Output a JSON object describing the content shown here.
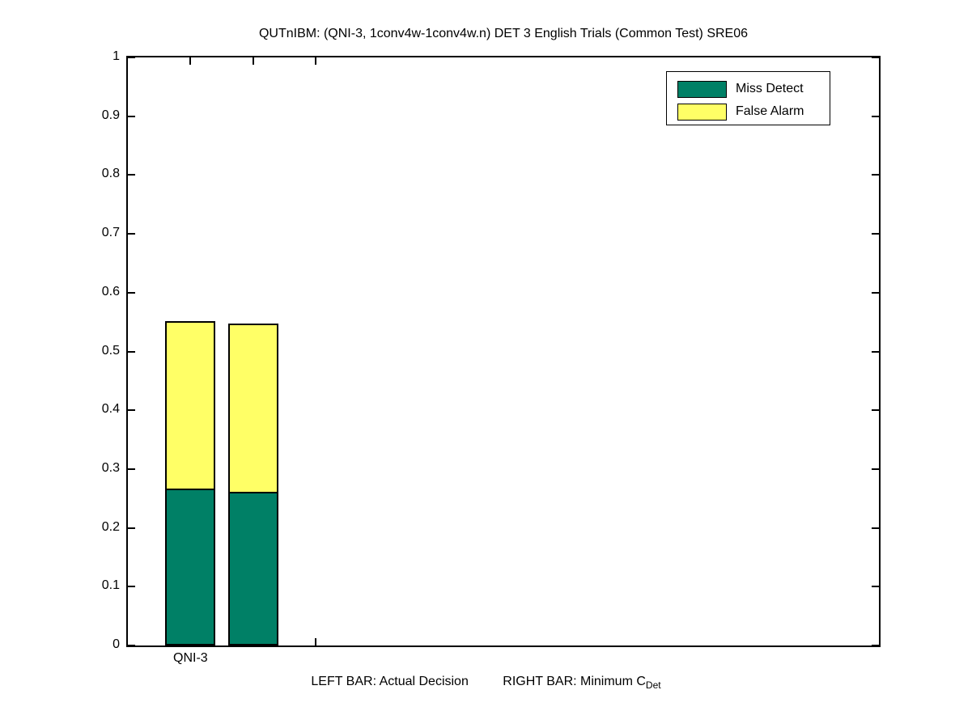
{
  "figure": {
    "background": "#ffffff",
    "title": "QUTnIBM: (QNI-3, 1conv4w-1conv4w.n) DET 3 English Trials (Common Test) SRE06"
  },
  "chart_data": {
    "type": "bar",
    "stacked": true,
    "title": "QUTnIBM: (QNI-3, 1conv4w-1conv4w.n) DET 3 English Trials (Common Test) SRE06",
    "categories": [
      "QNI-3"
    ],
    "series": [
      {
        "name": "Miss Detect",
        "color": "#008066",
        "values": [
          0.264,
          0.259
        ]
      },
      {
        "name": "False Alarm",
        "color": "#ffff66",
        "values": [
          0.287,
          0.289
        ]
      }
    ],
    "bars": [
      {
        "id": "actual-decision",
        "label": "LEFT BAR: Actual Decision",
        "position": 1.0,
        "total": 0.551
      },
      {
        "id": "minimum-cdet",
        "label": "RIGHT BAR: Minimum CDet",
        "position": 1.5,
        "total": 0.548
      }
    ],
    "bar_width": 0.4,
    "xlim": [
      0.5,
      6.5
    ],
    "ylim": [
      0,
      1
    ],
    "yticks": [
      {
        "value": 0.0,
        "label": "0"
      },
      {
        "value": 0.1,
        "label": "0.1"
      },
      {
        "value": 0.2,
        "label": "0.2"
      },
      {
        "value": 0.3,
        "label": "0.3"
      },
      {
        "value": 0.4,
        "label": "0.4"
      },
      {
        "value": 0.5,
        "label": "0.5"
      },
      {
        "value": 0.6,
        "label": "0.6"
      },
      {
        "value": 0.7,
        "label": "0.7"
      },
      {
        "value": 0.8,
        "label": "0.8"
      },
      {
        "value": 0.9,
        "label": "0.9"
      },
      {
        "value": 1.0,
        "label": "1"
      }
    ],
    "xticks": [
      {
        "pos": 1.0,
        "label": "QNI-3"
      },
      {
        "pos": 1.5,
        "label": ""
      },
      {
        "pos": 2.0,
        "label": ""
      }
    ],
    "grid": false,
    "legend_position": "top-right",
    "axis_color": "#000000"
  },
  "legend": {
    "entries": [
      {
        "label": "Miss Detect",
        "color": "#008066"
      },
      {
        "label": "False Alarm",
        "color": "#ffff66"
      }
    ]
  },
  "caption": {
    "left": "LEFT BAR: Actual Decision",
    "right": "RIGHT BAR: Minimum C",
    "subscript": "Det"
  }
}
